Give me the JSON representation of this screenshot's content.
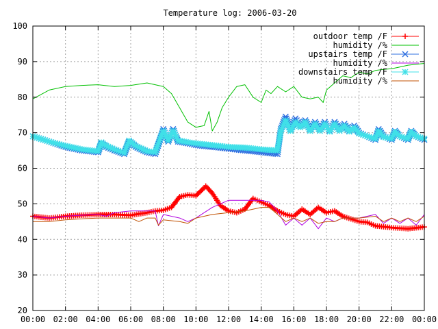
{
  "chart_data": {
    "type": "line",
    "title": "Temperature log: 2006-03-20",
    "xlabel": "",
    "ylabel": "",
    "xlim": [
      0,
      24
    ],
    "ylim": [
      20,
      100
    ],
    "grid": true,
    "legend_position": "top-right",
    "x_tick_labels": [
      "00:00",
      "02:00",
      "04:00",
      "06:00",
      "08:00",
      "10:00",
      "12:00",
      "14:00",
      "16:00",
      "18:00",
      "20:00",
      "22:00",
      "00:00"
    ],
    "y_tick_labels": [
      "20",
      "30",
      "40",
      "50",
      "60",
      "70",
      "80",
      "90",
      "100"
    ],
    "series": [
      {
        "name": "outdoor temp /F",
        "color": "#ff0000",
        "marker": "plus",
        "x": [
          0,
          1,
          2,
          3,
          4,
          5,
          6,
          7,
          7.5,
          8,
          8.5,
          9,
          9.5,
          10,
          10.5,
          10.6,
          11,
          11.5,
          12,
          12.5,
          13,
          13.5,
          14,
          14.5,
          15,
          15.5,
          16,
          16.5,
          17,
          17.5,
          18,
          18.5,
          19,
          20,
          20.5,
          21,
          22,
          23,
          24
        ],
        "y": [
          46.5,
          46,
          46.5,
          46.8,
          47,
          47,
          46.8,
          47.5,
          48,
          48.2,
          49,
          52,
          52.5,
          52.3,
          54.5,
          55,
          53,
          49.5,
          48,
          47.5,
          48.5,
          51.5,
          50.5,
          49.5,
          48,
          47,
          46.5,
          48.5,
          47,
          49,
          47.5,
          48,
          46.5,
          45,
          44.8,
          43.8,
          43.3,
          43,
          43.5
        ]
      },
      {
        "name": "humidity /%",
        "color": "#00c000",
        "marker": "none",
        "x": [
          0,
          1,
          2,
          3,
          4,
          5,
          6,
          7,
          8,
          8.5,
          9,
          9.5,
          10,
          10.5,
          10.8,
          11,
          11.3,
          11.6,
          12,
          12.5,
          13,
          13.5,
          14,
          14.3,
          14.6,
          15,
          15.5,
          16,
          16.5,
          17,
          17.5,
          17.8,
          18,
          18.5,
          19,
          19.5,
          20,
          20.5,
          21,
          21.5,
          22,
          22.5,
          23,
          24
        ],
        "y": [
          79.5,
          82,
          83,
          83.3,
          83.5,
          83,
          83.3,
          84,
          83,
          81,
          77,
          73,
          71.5,
          72,
          76,
          70.5,
          73,
          77,
          80,
          83,
          83.5,
          80,
          78.5,
          82,
          81,
          83,
          81.5,
          83,
          80,
          79.5,
          80,
          78.5,
          82,
          84,
          86,
          85.5,
          87,
          86.5,
          87.5,
          87.8,
          88,
          88.5,
          89,
          89.5
        ]
      },
      {
        "name": "upstairs temp /F",
        "color": "#3070e0",
        "marker": "x",
        "x": [
          0,
          1,
          2,
          3,
          4,
          4.2,
          4.5,
          5,
          5.6,
          5.9,
          6.3,
          7,
          7.5,
          7.8,
          8,
          8.3,
          8.6,
          8.9,
          9.5,
          10,
          11,
          12,
          13,
          14,
          15,
          15.2,
          15.5,
          15.8,
          16.1,
          16.4,
          16.7,
          17,
          17.3,
          17.6,
          17.9,
          18.2,
          18.5,
          18.8,
          19.1,
          19.4,
          19.7,
          20,
          20.5,
          21,
          21.2,
          21.5,
          22,
          22.2,
          22.5,
          23,
          23.2,
          23.5,
          24
        ],
        "y": [
          69,
          67.5,
          66,
          65,
          64.5,
          67,
          66,
          65,
          64,
          67.5,
          66,
          64.5,
          64,
          68,
          71,
          67.5,
          71,
          67.5,
          67,
          66.5,
          66,
          65.5,
          65,
          64.5,
          64,
          71,
          74.5,
          71,
          74,
          72,
          73.5,
          71,
          73,
          71,
          73,
          70.5,
          73,
          71,
          72.5,
          70.5,
          72,
          70,
          69,
          68,
          71,
          69,
          68,
          70.5,
          69,
          68,
          70.5,
          69,
          68
        ]
      },
      {
        "name": "humidity /%",
        "color": "#b000e0",
        "marker": "none",
        "x": [
          0,
          1,
          2,
          3,
          4,
          4.5,
          5,
          6,
          7,
          7.5,
          7.7,
          8,
          9,
          9.5,
          10,
          11,
          11.5,
          12,
          13,
          14,
          14.5,
          15,
          15.5,
          16,
          16.5,
          17,
          17.5,
          18,
          18.5,
          19,
          20,
          21,
          21.5,
          22,
          22.5,
          23,
          23.5,
          24
        ],
        "y": [
          46.5,
          46,
          46.5,
          46.8,
          47,
          46.5,
          47.5,
          48,
          48,
          48,
          43.8,
          47,
          46,
          45,
          46,
          49,
          50,
          51,
          51,
          51,
          50.5,
          48,
          44,
          46,
          44,
          46,
          43,
          46,
          45,
          46,
          46,
          47,
          44.5,
          46,
          44.5,
          46,
          44,
          47
        ]
      },
      {
        "name": "downstairs temp /F",
        "color": "#40e0e8",
        "marker": "star",
        "x": [
          0,
          1,
          2,
          3,
          4,
          4.2,
          4.5,
          5,
          5.6,
          5.9,
          6.3,
          7,
          7.5,
          7.8,
          8,
          8.3,
          8.6,
          8.9,
          9.5,
          10,
          11,
          12,
          13,
          14,
          15,
          15.2,
          15.5,
          15.8,
          16.1,
          16.4,
          16.7,
          17,
          17.3,
          17.6,
          17.9,
          18.2,
          18.5,
          18.8,
          19.1,
          19.4,
          19.7,
          20,
          20.5,
          21,
          21.2,
          21.5,
          22,
          22.2,
          22.5,
          23,
          23.2,
          23.5,
          24
        ],
        "y": [
          69,
          67.5,
          66.3,
          65.3,
          64.8,
          67.3,
          66.3,
          65.3,
          64.3,
          67.8,
          66.3,
          64.8,
          64.5,
          68.3,
          70.5,
          67.8,
          70.5,
          67.8,
          67.3,
          67,
          66.5,
          66,
          65.8,
          65.3,
          65,
          70.5,
          73.5,
          70.5,
          73,
          71.5,
          73,
          70.5,
          72.5,
          70.5,
          72.5,
          70.3,
          72.5,
          70.5,
          72,
          70.3,
          71.5,
          69.8,
          69,
          68.3,
          70.5,
          68.8,
          68.3,
          70.3,
          69,
          68.3,
          70.3,
          69,
          68.3
        ]
      },
      {
        "name": "humidity /%",
        "color": "#c05000",
        "marker": "none",
        "x": [
          0,
          1,
          2,
          3,
          4,
          5,
          6,
          6.5,
          7,
          7.5,
          7.7,
          8,
          9,
          9.5,
          10,
          11,
          12,
          13,
          14,
          14.5,
          15,
          15.5,
          16,
          16.5,
          17,
          17.5,
          18,
          18.5,
          19,
          20,
          21,
          21.5,
          22,
          22.5,
          23,
          23.5,
          24
        ],
        "y": [
          45,
          45,
          45.5,
          45.8,
          46,
          46,
          46,
          45,
          46,
          46,
          44,
          45.5,
          45,
          44.5,
          46,
          47,
          47.5,
          48,
          49,
          49,
          47,
          45,
          46,
          45,
          46,
          44.5,
          45,
          45,
          46,
          46,
          46.5,
          45,
          46,
          45,
          46,
          45,
          46.5
        ]
      }
    ]
  }
}
